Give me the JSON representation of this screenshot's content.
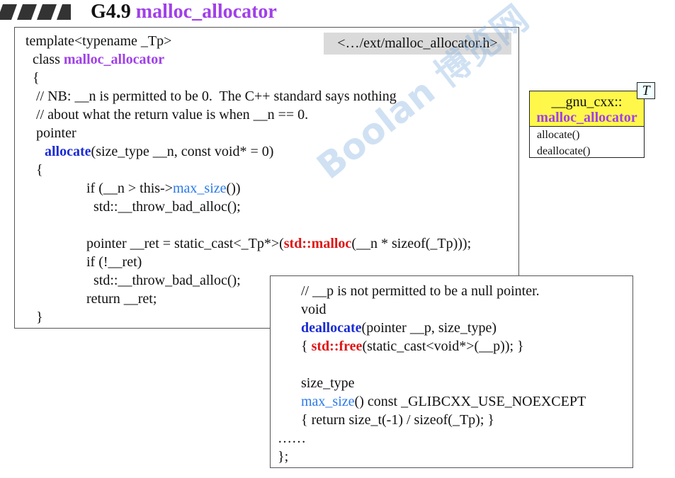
{
  "header": {
    "number": "G4.9",
    "name": "malloc_allocator"
  },
  "file_tag": "<…/ext/malloc_allocator.h>",
  "code_top": {
    "l1": "template<typename _Tp>",
    "l2_prefix": "  class ",
    "l2_name": "malloc_allocator",
    "l3": "  {",
    "l4": "   // NB: __n is permitted to be 0.  The C++ standard says nothing",
    "l5": "   // about what the return value is when __n == 0.",
    "l6": "   pointer",
    "l7_fn": "allocate",
    "l7_rest": "(size_type __n, const void* = 0)",
    "l8": "   {",
    "l9_a": "if (__n > this->",
    "l9_fn": "max_size",
    "l9_b": "())",
    "l10": "  std::__throw_bad_alloc();",
    "l11_a": "pointer __ret = static_cast<_Tp*>(",
    "l11_fn": "std::malloc",
    "l11_b": "(__n * sizeof(_Tp)));",
    "l12": "if (!__ret)",
    "l13": "  std::__throw_bad_alloc();",
    "l14": "return __ret;",
    "l15": "   }"
  },
  "code_bottom": {
    "l1": "// __p is not permitted to be a null pointer.",
    "l2": "void",
    "l3_fn": "deallocate",
    "l3_rest": "(pointer __p, size_type)",
    "l4_a": "{ ",
    "l4_fn": "std::free",
    "l4_b": "(static_cast<void*>(__p)); }",
    "l5": "size_type",
    "l6_fn": "max_size",
    "l6_rest": "() const _GLIBCXX_USE_NOEXCEPT",
    "l7": "{ return size_t(-1) / sizeof(_Tp); }",
    "l8": "……",
    "l9": "};"
  },
  "uml": {
    "namespace": "__gnu_cxx::",
    "class_name": "malloc_allocator",
    "template_param": "T",
    "methods": [
      "allocate()",
      "deallocate()"
    ]
  },
  "watermark": "Boolan 博览网",
  "colors": {
    "accent_purple": "#a040e8",
    "keyword_blue": "#1a2bd6",
    "keyword_red": "#e01515",
    "function_blue": "#2a7ae8",
    "uml_header": "#fff84a"
  }
}
